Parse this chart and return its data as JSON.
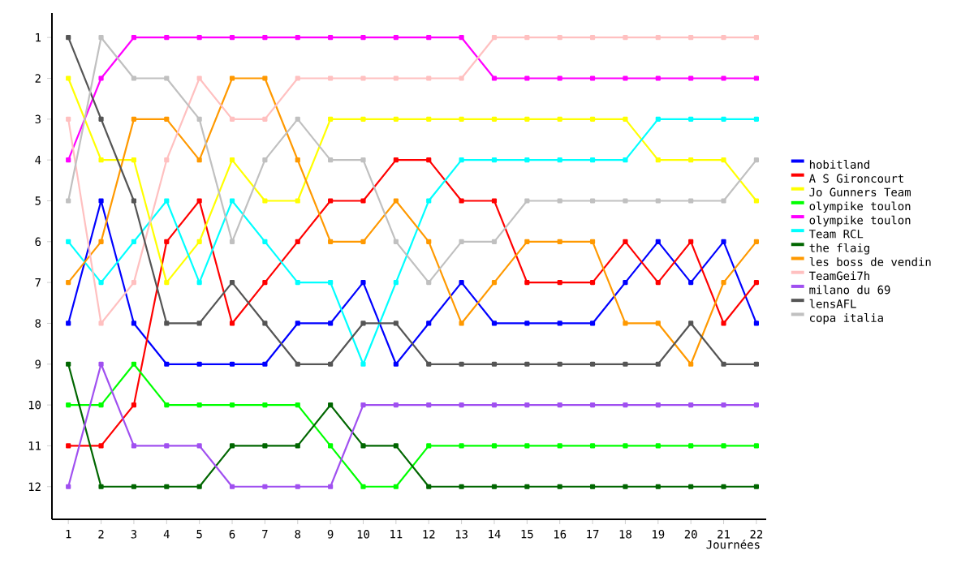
{
  "chart_data": {
    "type": "line",
    "xlabel": "Journées",
    "x": [
      1,
      2,
      3,
      4,
      5,
      6,
      7,
      8,
      9,
      10,
      11,
      12,
      13,
      14,
      15,
      16,
      17,
      18,
      19,
      20,
      21,
      22
    ],
    "xlim": [
      0.5,
      22.3
    ],
    "xticks": [
      1,
      2,
      3,
      4,
      5,
      6,
      7,
      8,
      9,
      10,
      11,
      12,
      13,
      14,
      15,
      16,
      17,
      18,
      19,
      20,
      21,
      22
    ],
    "ylim": [
      12.8,
      0.4
    ],
    "yticks": [
      1,
      2,
      3,
      4,
      5,
      6,
      7,
      8,
      9,
      10,
      11,
      12
    ],
    "legend": "right",
    "marker": "square",
    "line_style": "solid",
    "grid": false,
    "series": [
      {
        "name": "hobitland",
        "color": "#0000ff",
        "values": [
          8,
          5,
          8,
          9,
          9,
          9,
          9,
          8,
          8,
          7,
          9,
          8,
          7,
          8,
          8,
          8,
          8,
          7,
          6,
          7,
          6,
          8
        ]
      },
      {
        "name": "A S Gironcourt",
        "color": "#ff0000",
        "values": [
          11,
          11,
          10,
          6,
          5,
          8,
          7,
          6,
          5,
          5,
          4,
          4,
          5,
          5,
          7,
          7,
          7,
          6,
          7,
          6,
          8,
          7
        ]
      },
      {
        "name": "Jo Gunners Team",
        "color": "#ffff00",
        "values": [
          2,
          4,
          4,
          7,
          6,
          4,
          5,
          5,
          3,
          3,
          3,
          3,
          3,
          3,
          3,
          3,
          3,
          3,
          4,
          4,
          4,
          5
        ]
      },
      {
        "name": "olympike toulon",
        "color": "#00ff00",
        "values": [
          10,
          10,
          9,
          10,
          10,
          10,
          10,
          10,
          11,
          12,
          12,
          11,
          11,
          11,
          11,
          11,
          11,
          11,
          11,
          11,
          11,
          11
        ]
      },
      {
        "name": "olympike toulon",
        "color": "#ff00ff",
        "values": [
          4,
          2,
          1,
          1,
          1,
          1,
          1,
          1,
          1,
          1,
          1,
          1,
          1,
          2,
          2,
          2,
          2,
          2,
          2,
          2,
          2,
          2
        ]
      },
      {
        "name": "Team RCL",
        "color": "#00ffff",
        "values": [
          6,
          7,
          6,
          5,
          7,
          5,
          6,
          7,
          7,
          9,
          7,
          5,
          4,
          4,
          4,
          4,
          4,
          4,
          3,
          3,
          3,
          3
        ]
      },
      {
        "name": "the flaig",
        "color": "#006600",
        "values": [
          9,
          12,
          12,
          12,
          12,
          11,
          11,
          11,
          10,
          11,
          11,
          12,
          12,
          12,
          12,
          12,
          12,
          12,
          12,
          12,
          12,
          12
        ]
      },
      {
        "name": "les boss de vendin",
        "color": "#ff9900",
        "values": [
          7,
          6,
          3,
          3,
          4,
          2,
          2,
          4,
          6,
          6,
          5,
          6,
          8,
          7,
          6,
          6,
          6,
          8,
          8,
          9,
          7,
          6
        ]
      },
      {
        "name": "TeamGei7h",
        "color": "#ffc0c0",
        "values": [
          3,
          8,
          7,
          4,
          2,
          3,
          3,
          2,
          2,
          2,
          2,
          2,
          2,
          1,
          1,
          1,
          1,
          1,
          1,
          1,
          1,
          1
        ]
      },
      {
        "name": "milano du 69",
        "color": "#a050f0",
        "values": [
          12,
          9,
          11,
          11,
          11,
          12,
          12,
          12,
          12,
          10,
          10,
          10,
          10,
          10,
          10,
          10,
          10,
          10,
          10,
          10,
          10,
          10
        ]
      },
      {
        "name": "lensAFL",
        "color": "#555555",
        "values": [
          1,
          3,
          5,
          8,
          8,
          7,
          8,
          9,
          9,
          8,
          8,
          9,
          9,
          9,
          9,
          9,
          9,
          9,
          9,
          8,
          9,
          9
        ]
      },
      {
        "name": "copa italia",
        "color": "#c0c0c0",
        "values": [
          5,
          1,
          2,
          2,
          3,
          6,
          4,
          3,
          4,
          4,
          6,
          7,
          6,
          6,
          5,
          5,
          5,
          5,
          5,
          5,
          5,
          4
        ]
      }
    ]
  }
}
